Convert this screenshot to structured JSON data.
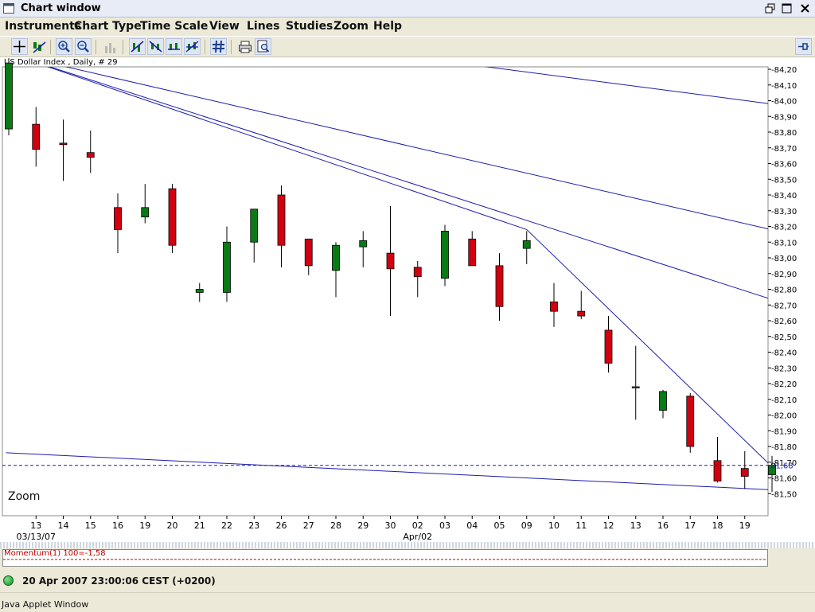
{
  "window": {
    "title": "Chart window"
  },
  "menu": [
    "Instruments",
    "Chart Type",
    "Time Scale",
    "View",
    "Lines",
    "Studies",
    "Zoom",
    "Help"
  ],
  "toolbar": {
    "icons": [
      "crosshair-icon",
      "trend-tool-icon",
      "zoom-in-icon",
      "zoom-out-icon",
      "bar-chart-icon",
      "line-tool-1-icon",
      "line-tool-2-icon",
      "line-tool-3-icon",
      "line-tool-4-icon",
      "grid-icon",
      "print-icon",
      "print-preview-icon",
      "pin-icon"
    ]
  },
  "chart": {
    "instrument_label": "US Dollar Index , Daily, # 29",
    "zoom_label": "Zoom",
    "current_price_label": "81,68",
    "momentum_label": "Momentum(1) 100=-1,58"
  },
  "chart_data": {
    "type": "candlestick",
    "title": "US Dollar Index , Daily, # 29",
    "y_range": [
      81.46,
      84.3
    ],
    "y_ticks": [
      "84,20",
      "84,10",
      "84,00",
      "83,90",
      "83,80",
      "83,70",
      "83,60",
      "83,50",
      "83,40",
      "83,30",
      "83,20",
      "83,10",
      "83,00",
      "82,90",
      "82,80",
      "82,70",
      "82,60",
      "82,50",
      "82,40",
      "82,30",
      "82,20",
      "82,10",
      "82,00",
      "81,90",
      "81,80",
      "81,70",
      "81,60",
      "81,50"
    ],
    "x_labels": [
      "13",
      "14",
      "15",
      "16",
      "19",
      "20",
      "21",
      "22",
      "23",
      "26",
      "27",
      "28",
      "29",
      "30",
      "02",
      "03",
      "04",
      "05",
      "09",
      "10",
      "11",
      "12",
      "13",
      "16",
      "17",
      "18",
      "19"
    ],
    "x_sublabels": [
      {
        "index": 0,
        "text": "03/13/07"
      },
      {
        "index": 14,
        "text": "Apr/02"
      }
    ],
    "candles": [
      {
        "o": 83.82,
        "h": 84.27,
        "l": 83.78,
        "c": 84.24
      },
      {
        "o": 83.85,
        "h": 83.96,
        "l": 83.58,
        "c": 83.69
      },
      {
        "o": 83.73,
        "h": 83.88,
        "l": 83.49,
        "c": 83.72
      },
      {
        "o": 83.67,
        "h": 83.81,
        "l": 83.54,
        "c": 83.64
      },
      {
        "o": 83.32,
        "h": 83.41,
        "l": 83.03,
        "c": 83.18
      },
      {
        "o": 83.26,
        "h": 83.47,
        "l": 83.22,
        "c": 83.32
      },
      {
        "o": 83.44,
        "h": 83.47,
        "l": 83.03,
        "c": 83.08
      },
      {
        "o": 82.78,
        "h": 82.84,
        "l": 82.72,
        "c": 82.8
      },
      {
        "o": 82.78,
        "h": 83.2,
        "l": 82.72,
        "c": 83.1
      },
      {
        "o": 83.1,
        "h": 83.31,
        "l": 82.97,
        "c": 83.31
      },
      {
        "o": 83.4,
        "h": 83.46,
        "l": 82.94,
        "c": 83.08
      },
      {
        "o": 83.12,
        "h": 83.12,
        "l": 82.89,
        "c": 82.95
      },
      {
        "o": 82.92,
        "h": 83.1,
        "l": 82.75,
        "c": 83.08
      },
      {
        "o": 83.07,
        "h": 83.17,
        "l": 82.94,
        "c": 83.11
      },
      {
        "o": 83.03,
        "h": 83.33,
        "l": 82.63,
        "c": 82.93
      },
      {
        "o": 82.94,
        "h": 82.98,
        "l": 82.75,
        "c": 82.88
      },
      {
        "o": 82.87,
        "h": 83.21,
        "l": 82.82,
        "c": 83.17
      },
      {
        "o": 83.12,
        "h": 83.17,
        "l": 82.95,
        "c": 82.95
      },
      {
        "o": 82.95,
        "h": 83.03,
        "l": 82.6,
        "c": 82.69
      },
      {
        "o": 83.06,
        "h": 83.17,
        "l": 82.96,
        "c": 83.11
      },
      {
        "o": 82.72,
        "h": 82.84,
        "l": 82.56,
        "c": 82.66
      },
      {
        "o": 82.66,
        "h": 82.79,
        "l": 82.61,
        "c": 82.63
      },
      {
        "o": 82.54,
        "h": 82.63,
        "l": 82.27,
        "c": 82.33
      },
      {
        "o": 82.18,
        "h": 82.44,
        "l": 81.97,
        "c": 82.18
      },
      {
        "o": 82.03,
        "h": 82.16,
        "l": 81.98,
        "c": 82.15
      },
      {
        "o": 82.12,
        "h": 82.14,
        "l": 81.76,
        "c": 81.8
      },
      {
        "o": 81.71,
        "h": 81.86,
        "l": 81.57,
        "c": 81.58
      },
      {
        "o": 81.66,
        "h": 81.77,
        "l": 81.53,
        "c": 81.61
      },
      {
        "o": 81.62,
        "h": 81.74,
        "l": 81.51,
        "c": 81.68
      }
    ],
    "colors": {
      "up": "#0a7a14",
      "down": "#d00010",
      "trendline": "#1c1cb0"
    },
    "trendlines": [
      {
        "from": [
          0,
          84.3
        ],
        "to": [
          29.7,
          82.64
        ]
      },
      {
        "from": [
          0,
          84.3
        ],
        "to": [
          29.7,
          83.11
        ]
      },
      {
        "from": [
          13.8,
          84.3
        ],
        "to": [
          29.7,
          83.94
        ]
      },
      {
        "from": [
          0,
          84.3
        ],
        "to": [
          19,
          83.18
        ]
      },
      {
        "from": [
          19,
          83.18
        ],
        "to": [
          28.6,
          81.57
        ]
      },
      {
        "from": [
          -0.1,
          81.76
        ],
        "to": [
          29.7,
          81.51
        ]
      }
    ],
    "current_price": 81.68,
    "momentum_level": -1.58
  },
  "status": {
    "datetime": "20 Apr 2007 23:00:06  CEST (+0200)"
  },
  "applet": {
    "label": "Java Applet Window"
  }
}
